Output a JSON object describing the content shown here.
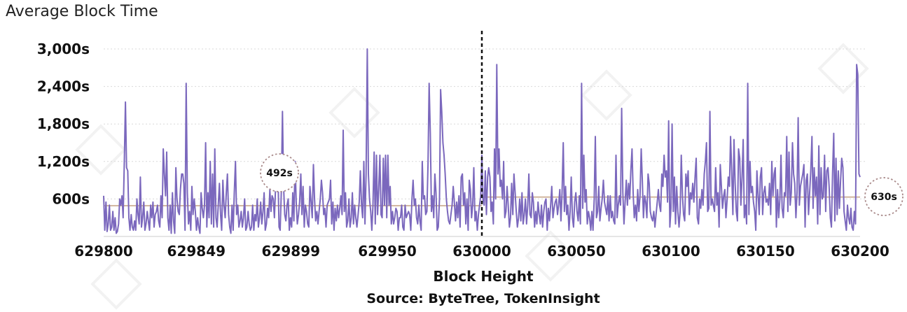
{
  "chart_data": {
    "type": "line",
    "title": "Average Block Time",
    "xlabel": "Block Height",
    "ylabel": "",
    "source": "Source: ByteTree, TokenInsight",
    "watermark": "TokenInsight",
    "xlim": [
      629800,
      630200
    ],
    "ylim": [
      0,
      3000
    ],
    "y_ticks": [
      600,
      1200,
      1800,
      2400,
      3000
    ],
    "y_tick_labels": [
      "600s",
      "1,200s",
      "1,800s",
      "2,400s",
      "3,000s"
    ],
    "x_ticks": [
      629800,
      629849,
      629899,
      629950,
      630000,
      630050,
      630100,
      630150,
      630200
    ],
    "x_tick_labels": [
      "629800",
      "629849",
      "629899",
      "629950",
      "630000",
      "630050",
      "630100",
      "630150",
      "630200"
    ],
    "grid": "horizontal",
    "halving_block": 630000,
    "line_color": "#7b68bd",
    "avg_line_color": "#c8a88c",
    "series": [
      {
        "values": [
          650,
          100,
          550,
          80,
          200,
          500,
          100,
          150,
          400,
          100,
          300,
          50,
          80,
          200,
          600,
          500,
          650,
          300,
          1200,
          2150,
          1100,
          1050,
          300,
          100,
          350,
          150,
          100,
          250,
          100,
          600,
          350,
          200,
          950,
          150,
          300,
          550,
          100,
          200,
          400,
          250,
          100,
          500,
          300,
          550,
          150,
          350,
          400,
          500,
          250,
          150,
          650,
          300,
          1400,
          1000,
          650,
          1350,
          300,
          100,
          500,
          50,
          700,
          250,
          50,
          1100,
          600,
          400,
          350,
          750,
          1000,
          1000,
          850,
          100,
          2450,
          700,
          200,
          400,
          100,
          800,
          350,
          600,
          400,
          100,
          300,
          150,
          50,
          700,
          450,
          300,
          500,
          1500,
          150,
          700,
          300,
          1200,
          200,
          1000,
          150,
          1400,
          300,
          150,
          500,
          850,
          350,
          100,
          900,
          500,
          300,
          700,
          1000,
          350,
          150,
          50,
          500,
          100,
          700,
          1200,
          350,
          500,
          150,
          250,
          400,
          150,
          300,
          600,
          100,
          150,
          400,
          200,
          100,
          150,
          500,
          100,
          350,
          250,
          600,
          150,
          300,
          550,
          200,
          400,
          700,
          100,
          200,
          450,
          300,
          750,
          400,
          650,
          600,
          300,
          800,
          1100,
          1100,
          150,
          100,
          700,
          2000,
          800,
          350,
          250,
          500,
          600,
          100,
          300,
          150,
          700,
          250,
          1200,
          550,
          200,
          350,
          550,
          1000,
          350,
          800,
          150,
          500,
          400,
          200,
          150,
          800,
          550,
          300,
          1150,
          600,
          250,
          400,
          200,
          400,
          600,
          900,
          700,
          350,
          450,
          150,
          500,
          550,
          600,
          900,
          200,
          550,
          100,
          450,
          250,
          500,
          300,
          450,
          650,
          350,
          1700,
          400,
          700,
          150,
          250,
          600,
          150,
          300,
          700,
          200,
          500,
          300,
          150,
          350,
          550,
          1050,
          500,
          300,
          1200,
          200,
          1000,
          3000,
          1000,
          600,
          400,
          100,
          500,
          1350,
          200,
          1300,
          350,
          750,
          1300,
          350,
          300,
          1250,
          500,
          1300,
          300,
          1300,
          500,
          800,
          200,
          400,
          200,
          300,
          450,
          400,
          100,
          300,
          300,
          500,
          150,
          100,
          500,
          300,
          350,
          400,
          350,
          100,
          600,
          900,
          500,
          600,
          300,
          200,
          500,
          250,
          100,
          1200,
          600,
          650,
          350,
          400,
          1150,
          2450,
          1650,
          400,
          650,
          300,
          1000,
          700,
          100,
          150,
          600,
          2350,
          2000,
          1500,
          1300,
          1000,
          600,
          400,
          250,
          200,
          350,
          500,
          800,
          550,
          250,
          550,
          300,
          650,
          150,
          950,
          1000,
          500,
          700,
          200,
          600,
          100,
          900,
          750,
          300,
          500,
          1100,
          250,
          400,
          100,
          350,
          500,
          650,
          1300,
          600,
          500,
          1050,
          350,
          950,
          1100,
          950,
          400,
          550,
          200,
          1400,
          600,
          2750,
          1000,
          1400,
          800,
          900,
          600,
          1200,
          300,
          400,
          800,
          500,
          150,
          300,
          850,
          350,
          1000,
          700,
          400,
          150,
          300,
          600,
          250,
          700,
          200,
          350,
          600,
          200,
          500,
          1000,
          350,
          300,
          700,
          550,
          150,
          400,
          200,
          550,
          350,
          200,
          500,
          150,
          400,
          550,
          600,
          100,
          450,
          250,
          500,
          800,
          300,
          450,
          550,
          600,
          350,
          500,
          750,
          250,
          700,
          1500,
          400,
          800,
          350,
          500,
          100,
          400,
          950,
          300,
          150,
          550,
          700,
          400,
          250,
          650,
          200,
          2450,
          450,
          1300,
          550,
          750,
          200,
          400,
          300,
          100,
          400,
          100,
          600,
          1600,
          300,
          400,
          800,
          250,
          450,
          600,
          900,
          550,
          450,
          350,
          650,
          250,
          650,
          300,
          400,
          250,
          200,
          1300,
          300,
          500,
          650,
          500,
          2050,
          700,
          200,
          550,
          900,
          500,
          850,
          600,
          1050,
          1400,
          700,
          300,
          500,
          250,
          750,
          400,
          650,
          1400,
          900,
          300,
          650,
          550,
          300,
          1000,
          850,
          400,
          300,
          250,
          400,
          150,
          350,
          550,
          750,
          500,
          400,
          1000,
          800,
          1300,
          950,
          1050,
          550,
          1850,
          150,
          450,
          1800,
          400,
          950,
          200,
          800,
          400,
          150,
          400,
          1300,
          650,
          350,
          250,
          1000,
          800,
          1050,
          350,
          700,
          600,
          850,
          550,
          950,
          1250,
          300,
          200,
          600,
          450,
          750,
          500,
          1000,
          1200,
          1500,
          400,
          450,
          2000,
          500,
          600,
          500,
          400,
          1100,
          500,
          700,
          150,
          1150,
          800,
          450,
          650,
          750,
          300,
          600,
          950,
          800,
          1600,
          1050,
          350,
          1550,
          850,
          400,
          250,
          1400,
          1250,
          500,
          950,
          1550,
          300,
          500,
          200,
          2450,
          350,
          1200,
          700,
          800,
          550,
          400,
          100,
          1050,
          650,
          350,
          950,
          1100,
          350,
          700,
          800,
          550,
          600,
          500,
          850,
          350,
          1200,
          650,
          1000,
          1100,
          150,
          750,
          300,
          600,
          1300,
          450,
          300,
          700,
          650,
          1600,
          400,
          1350,
          500,
          700,
          1500,
          1000,
          850,
          300,
          700,
          1900,
          500,
          800,
          900,
          1000,
          1150,
          150,
          900,
          1000,
          350,
          700,
          1050,
          1600,
          450,
          1100,
          650,
          950,
          200,
          1450,
          350,
          1100,
          600,
          650,
          1300,
          400,
          1050,
          1100,
          800,
          300,
          150,
          1000,
          1650,
          250,
          1250,
          350,
          1050,
          450,
          900,
          1250,
          1100,
          400,
          250,
          100,
          500,
          300,
          200,
          450,
          150,
          100,
          400,
          200,
          2750,
          2600,
          1000,
          950
        ]
      }
    ],
    "annotations": [
      {
        "label": "492s",
        "value": 492,
        "range": [
          629800,
          630000
        ]
      },
      {
        "label": "630s",
        "value": 630,
        "range": [
          630000,
          630200
        ]
      }
    ]
  }
}
